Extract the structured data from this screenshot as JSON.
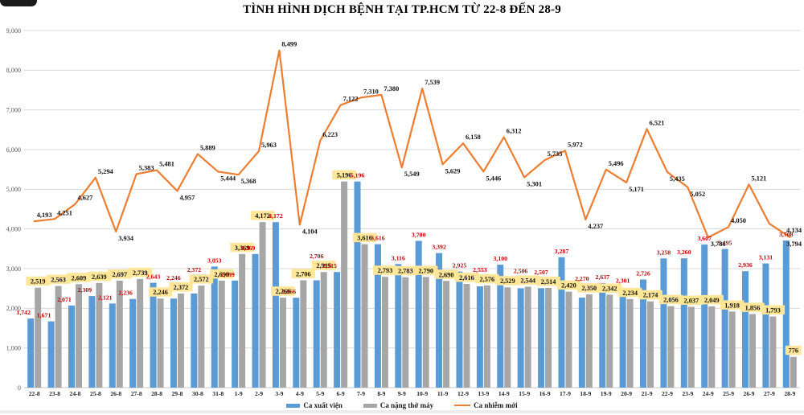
{
  "title": "TÌNH HÌNH DỊCH BỆNH TẠI TP.HCM TỪ 22-8 ĐẾN 28-9",
  "y_axis": {
    "tick_labels_top_down": [
      "9,000",
      "8,000",
      "7,000",
      "6,000",
      "5,000",
      "4,000",
      "3,000",
      "2,000",
      "1,000",
      "0"
    ],
    "max": 9000,
    "min": 0,
    "step": 1000
  },
  "legend": [
    {
      "label": "Ca xuất viện",
      "type": "bar",
      "color": "#5B9BD5"
    },
    {
      "label": "Ca nặng thở máy",
      "type": "bar",
      "color": "#A6A6A6"
    },
    {
      "label": "Ca nhiễm mới",
      "type": "line",
      "color": "#ED7D31"
    }
  ],
  "colors": {
    "blue_bar": "#5B9BD5",
    "gray_bar": "#A6A6A6",
    "orange_line": "#ED7D31",
    "yellow_label_bg": "#FFE699",
    "red_label_text": "#C00000",
    "black_label_text": "#111111",
    "gridline": "#D9D9D9",
    "axis_text": "#595959",
    "x_tick_text": "#262626"
  },
  "chart_data": {
    "type": "bar",
    "subtype": "grouped-bars-with-line-overlay",
    "title": "TÌNH HÌNH DỊCH BỆNH TẠI TP.HCM TỪ 22-8 ĐẾN 28-9",
    "xlabel": "",
    "ylabel": "",
    "ylim": [
      0,
      9000
    ],
    "grid": "horizontal",
    "legend_position": "bottom",
    "categories": [
      "22-8",
      "23-8",
      "24-8",
      "25-8",
      "26-8",
      "27-8",
      "28-8",
      "29-8",
      "30-8",
      "31-8",
      "1-9",
      "2-9",
      "3-9",
      "4-9",
      "5-9",
      "6-9",
      "7-9",
      "8-9",
      "9-9",
      "10-9",
      "11-9",
      "12-9",
      "13-9",
      "14-9",
      "15-9",
      "16-9",
      "17-9",
      "18-9",
      "19-9",
      "20-9",
      "21-9",
      "22-9",
      "23-9",
      "24-9",
      "25-9",
      "26-9",
      "27-9",
      "28-9"
    ],
    "series": [
      {
        "name": "Ca xuất viện",
        "type": "bar",
        "color": "#5B9BD5",
        "label_style": "red-text",
        "values": [
          1742,
          1671,
          2071,
          2309,
          2121,
          2236,
          2643,
          2246,
          2372,
          3053,
          2699,
          3369,
          4172,
          2266,
          2706,
          2915,
          5196,
          3616,
          3116,
          3700,
          3392,
          2925,
          2553,
          3100,
          2506,
          2507,
          3287,
          2270,
          2637,
          2301,
          2726,
          3258,
          3260,
          3607,
          3495,
          2936,
          3131,
          3708
        ]
      },
      {
        "name": "Ca nặng thở máy",
        "type": "bar",
        "color": "#A6A6A6",
        "label_style": "yellow-badge",
        "values": [
          2519,
          2563,
          2609,
          2639,
          2697,
          2739,
          2246,
          2372,
          2572,
          2699,
          3369,
          4172,
          2266,
          2706,
          2915,
          5196,
          3616,
          2793,
          2783,
          2790,
          2690,
          2616,
          2576,
          2529,
          2544,
          2514,
          2420,
          2350,
          2342,
          2234,
          2174,
          2056,
          2037,
          2049,
          1918,
          1856,
          1793,
          776
        ]
      },
      {
        "name": "Ca nhiễm mới",
        "type": "line",
        "color": "#ED7D31",
        "label_style": "black-text",
        "values": [
          4193,
          4251,
          4627,
          5294,
          3934,
          5383,
          5481,
          4957,
          5889,
          5444,
          5368,
          5963,
          8499,
          4104,
          6223,
          7122,
          7310,
          7380,
          5549,
          7539,
          5629,
          6158,
          5446,
          6312,
          5301,
          5735,
          5972,
          4237,
          5496,
          5171,
          6521,
          5435,
          5052,
          3786,
          4050,
          5121,
          4134,
          3794
        ]
      }
    ]
  }
}
